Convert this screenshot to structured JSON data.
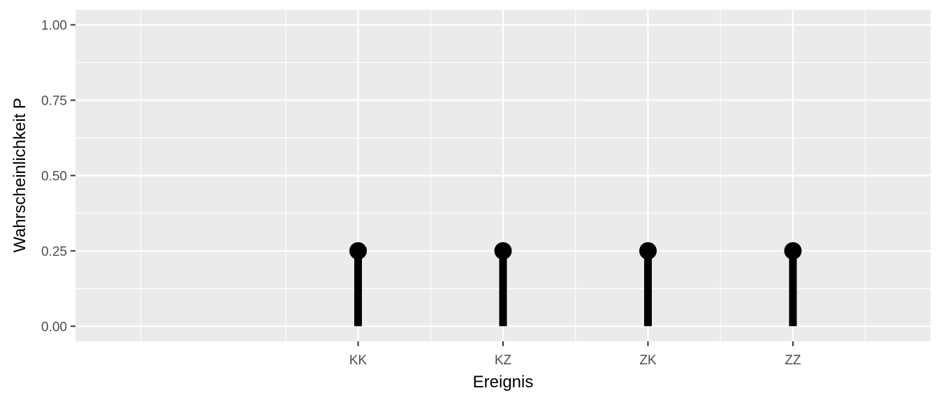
{
  "chart_data": {
    "type": "lollipop",
    "xlabel": "Ereignis",
    "ylabel": "Wahrscheinlichkeit P",
    "categories": [
      "KK",
      "KZ",
      "ZK",
      "ZZ"
    ],
    "values": [
      0.25,
      0.25,
      0.25,
      0.25
    ],
    "ylim": [
      0,
      1
    ],
    "y_ticks": [
      "0.00",
      "0.25",
      "0.50",
      "0.75",
      "1.00"
    ],
    "y_tick_values": [
      0,
      0.25,
      0.5,
      0.75,
      1
    ],
    "grid": true,
    "x_range": [
      -0.95,
      4.95
    ],
    "colors": {
      "panel": "#ebebeb",
      "grid": "#ffffff",
      "marks": "#000000",
      "tick_text": "#4d4d4d",
      "tick_marks": "#333333"
    }
  }
}
